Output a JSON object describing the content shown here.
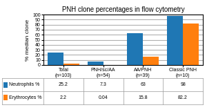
{
  "chart_data": {
    "type": "bar",
    "title": "PNH clone percentages in flow cytometry",
    "ylabel": "% median clone",
    "categories": [
      "Total (n=103)",
      "PNH/sc/AA (n=54)",
      "AA/PNH (n=39)",
      "Classic PNH (n=10)"
    ],
    "series": [
      {
        "name": "Neutrophils %",
        "values": [
          25.2,
          7.3,
          63,
          98
        ]
      },
      {
        "name": "Erythrocytes %",
        "values": [
          2.2,
          0.04,
          15.8,
          82.2
        ]
      }
    ],
    "ylim": [
      0,
      100
    ],
    "yticks": [
      0,
      10,
      20,
      30,
      40,
      50,
      60,
      70,
      80,
      90,
      100
    ],
    "grid": true
  }
}
